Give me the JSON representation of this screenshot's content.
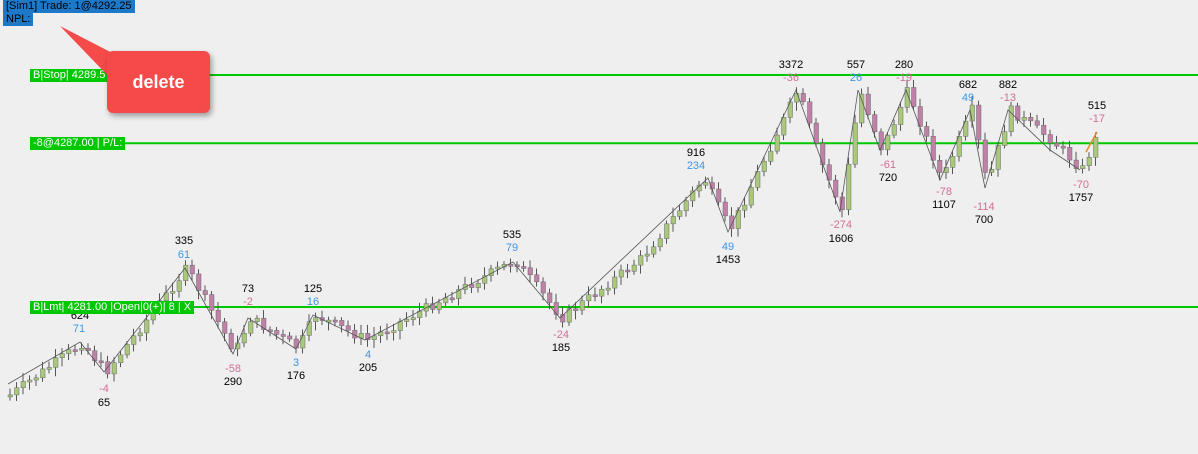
{
  "info": {
    "line1": "[Sim1]  Trade: 1@4292.25",
    "line2": "NPL:"
  },
  "orders": {
    "stop": "B|Stop| 4289.5",
    "position": "-8@4287.00 | P/L:",
    "limit": "B|Lmt| 4281.00 |Open|0(+)| 8 | X"
  },
  "callout": {
    "label": "delete"
  },
  "colors": {
    "background": "#efefef",
    "order_line": "#00c800",
    "up_candle": "#a8c87a",
    "down_candle": "#c080a8",
    "swing_line": "#555555",
    "label_black": "#000000",
    "label_blue": "#3c96e6",
    "label_pink": "#d26e96",
    "callout": "#f54a4a",
    "info_bg": "#1e78c8"
  },
  "chart_data": {
    "type": "candlestick",
    "price_lines": [
      4289.5,
      4287.0,
      4281.0
    ],
    "swing_labels": [
      {
        "text": "624",
        "color": "black"
      },
      {
        "text": "71",
        "color": "blue"
      },
      {
        "text": "-4",
        "color": "pink"
      },
      {
        "text": "65",
        "color": "black"
      },
      {
        "text": "335",
        "color": "black"
      },
      {
        "text": "61",
        "color": "blue"
      },
      {
        "text": "-58",
        "color": "pink"
      },
      {
        "text": "290",
        "color": "black"
      },
      {
        "text": "73",
        "color": "black"
      },
      {
        "text": "-2",
        "color": "pink"
      },
      {
        "text": "3",
        "color": "blue"
      },
      {
        "text": "176",
        "color": "black"
      },
      {
        "text": "125",
        "color": "black"
      },
      {
        "text": "16",
        "color": "blue"
      },
      {
        "text": "4",
        "color": "blue"
      },
      {
        "text": "205",
        "color": "black"
      },
      {
        "text": "535",
        "color": "black"
      },
      {
        "text": "79",
        "color": "blue"
      },
      {
        "text": "-24",
        "color": "pink"
      },
      {
        "text": "185",
        "color": "black"
      },
      {
        "text": "916",
        "color": "black"
      },
      {
        "text": "234",
        "color": "blue"
      },
      {
        "text": "49",
        "color": "blue"
      },
      {
        "text": "1453",
        "color": "black"
      },
      {
        "text": "3372",
        "color": "black"
      },
      {
        "text": "-36",
        "color": "pink"
      },
      {
        "text": "557",
        "color": "black"
      },
      {
        "text": "26",
        "color": "blue"
      },
      {
        "text": "-274",
        "color": "pink"
      },
      {
        "text": "1606",
        "color": "black"
      },
      {
        "text": "280",
        "color": "black"
      },
      {
        "text": "-19",
        "color": "pink"
      },
      {
        "text": "-61",
        "color": "pink"
      },
      {
        "text": "720",
        "color": "black"
      },
      {
        "text": "682",
        "color": "black"
      },
      {
        "text": "49",
        "color": "blue"
      },
      {
        "text": "-78",
        "color": "pink"
      },
      {
        "text": "1107",
        "color": "black"
      },
      {
        "text": "882",
        "color": "black"
      },
      {
        "text": "-13",
        "color": "pink"
      },
      {
        "text": "-114",
        "color": "pink"
      },
      {
        "text": "700",
        "color": "black"
      },
      {
        "text": "515",
        "color": "black"
      },
      {
        "text": "-17",
        "color": "pink"
      },
      {
        "text": "-70",
        "color": "pink"
      },
      {
        "text": "1757",
        "color": "black"
      }
    ]
  }
}
